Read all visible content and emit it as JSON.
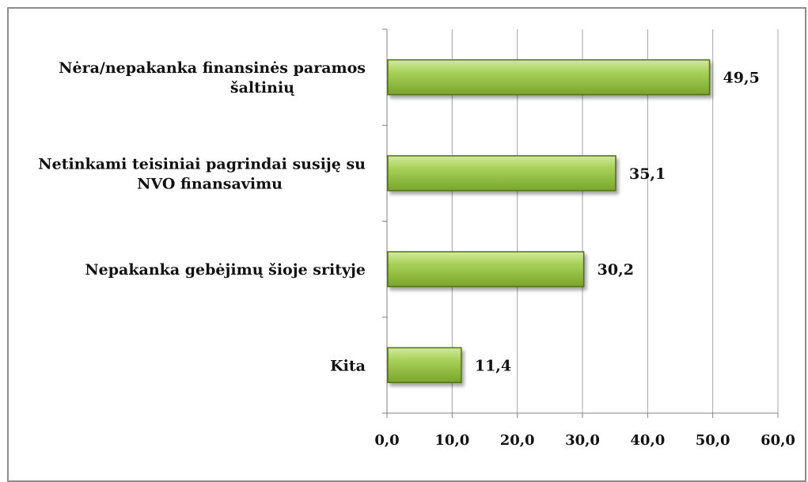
{
  "chart_data": {
    "type": "bar",
    "orientation": "horizontal",
    "categories": [
      [
        "Nėra/nepakanka finansinės paramos",
        "šaltinių"
      ],
      [
        "Netinkami teisiniai pagrindai susiję su",
        "NVO finansavimu"
      ],
      [
        "Nepakanka gebėjimų šioje srityje"
      ],
      [
        "Kita"
      ]
    ],
    "values": [
      49.5,
      35.1,
      30.2,
      11.4
    ],
    "value_labels": [
      "49,5",
      "35,1",
      "30,2",
      "11,4"
    ],
    "xlim": [
      0,
      60
    ],
    "x_ticks": [
      0,
      10,
      20,
      30,
      40,
      50,
      60
    ],
    "x_tick_labels": [
      "0,0",
      "10,0",
      "20,0",
      "30,0",
      "40,0",
      "50,0",
      "60,0"
    ],
    "grid": "vertical",
    "legend": "none",
    "colors": {
      "bar_light": "#c6e08a",
      "bar_mid": "#9bc741",
      "bar_dark": "#6f9a22",
      "bar_edge": "#4f6f15",
      "grid": "#a6a6a6",
      "axis": "#808080"
    }
  }
}
